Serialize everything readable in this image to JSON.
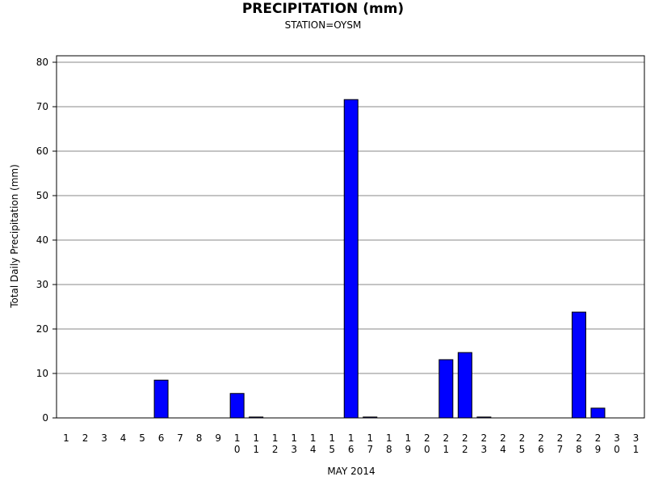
{
  "chart_data": {
    "type": "bar",
    "title": "PRECIPITATION (mm)",
    "subtitle": "STATION=OYSM",
    "xlabel": "MAY 2014",
    "ylabel": "Total Daily Precipitation (mm)",
    "ylim": [
      0,
      80
    ],
    "yticks": [
      0,
      10,
      20,
      30,
      40,
      50,
      60,
      70,
      80
    ],
    "grid": true,
    "bar_color": "#0000ff",
    "categories": [
      "1",
      "2",
      "3",
      "4",
      "5",
      "6",
      "7",
      "8",
      "9",
      "10",
      "11",
      "12",
      "13",
      "14",
      "15",
      "16",
      "17",
      "18",
      "19",
      "20",
      "21",
      "22",
      "23",
      "24",
      "25",
      "26",
      "27",
      "28",
      "29",
      "30",
      "31"
    ],
    "values": [
      0,
      0,
      0,
      0,
      0,
      8.5,
      0,
      0,
      0,
      5.5,
      0.2,
      0,
      0,
      0,
      0,
      71.6,
      0.2,
      0,
      0,
      0,
      13.1,
      14.7,
      0.2,
      0,
      0,
      0,
      0,
      23.8,
      2.2,
      0,
      0
    ]
  }
}
